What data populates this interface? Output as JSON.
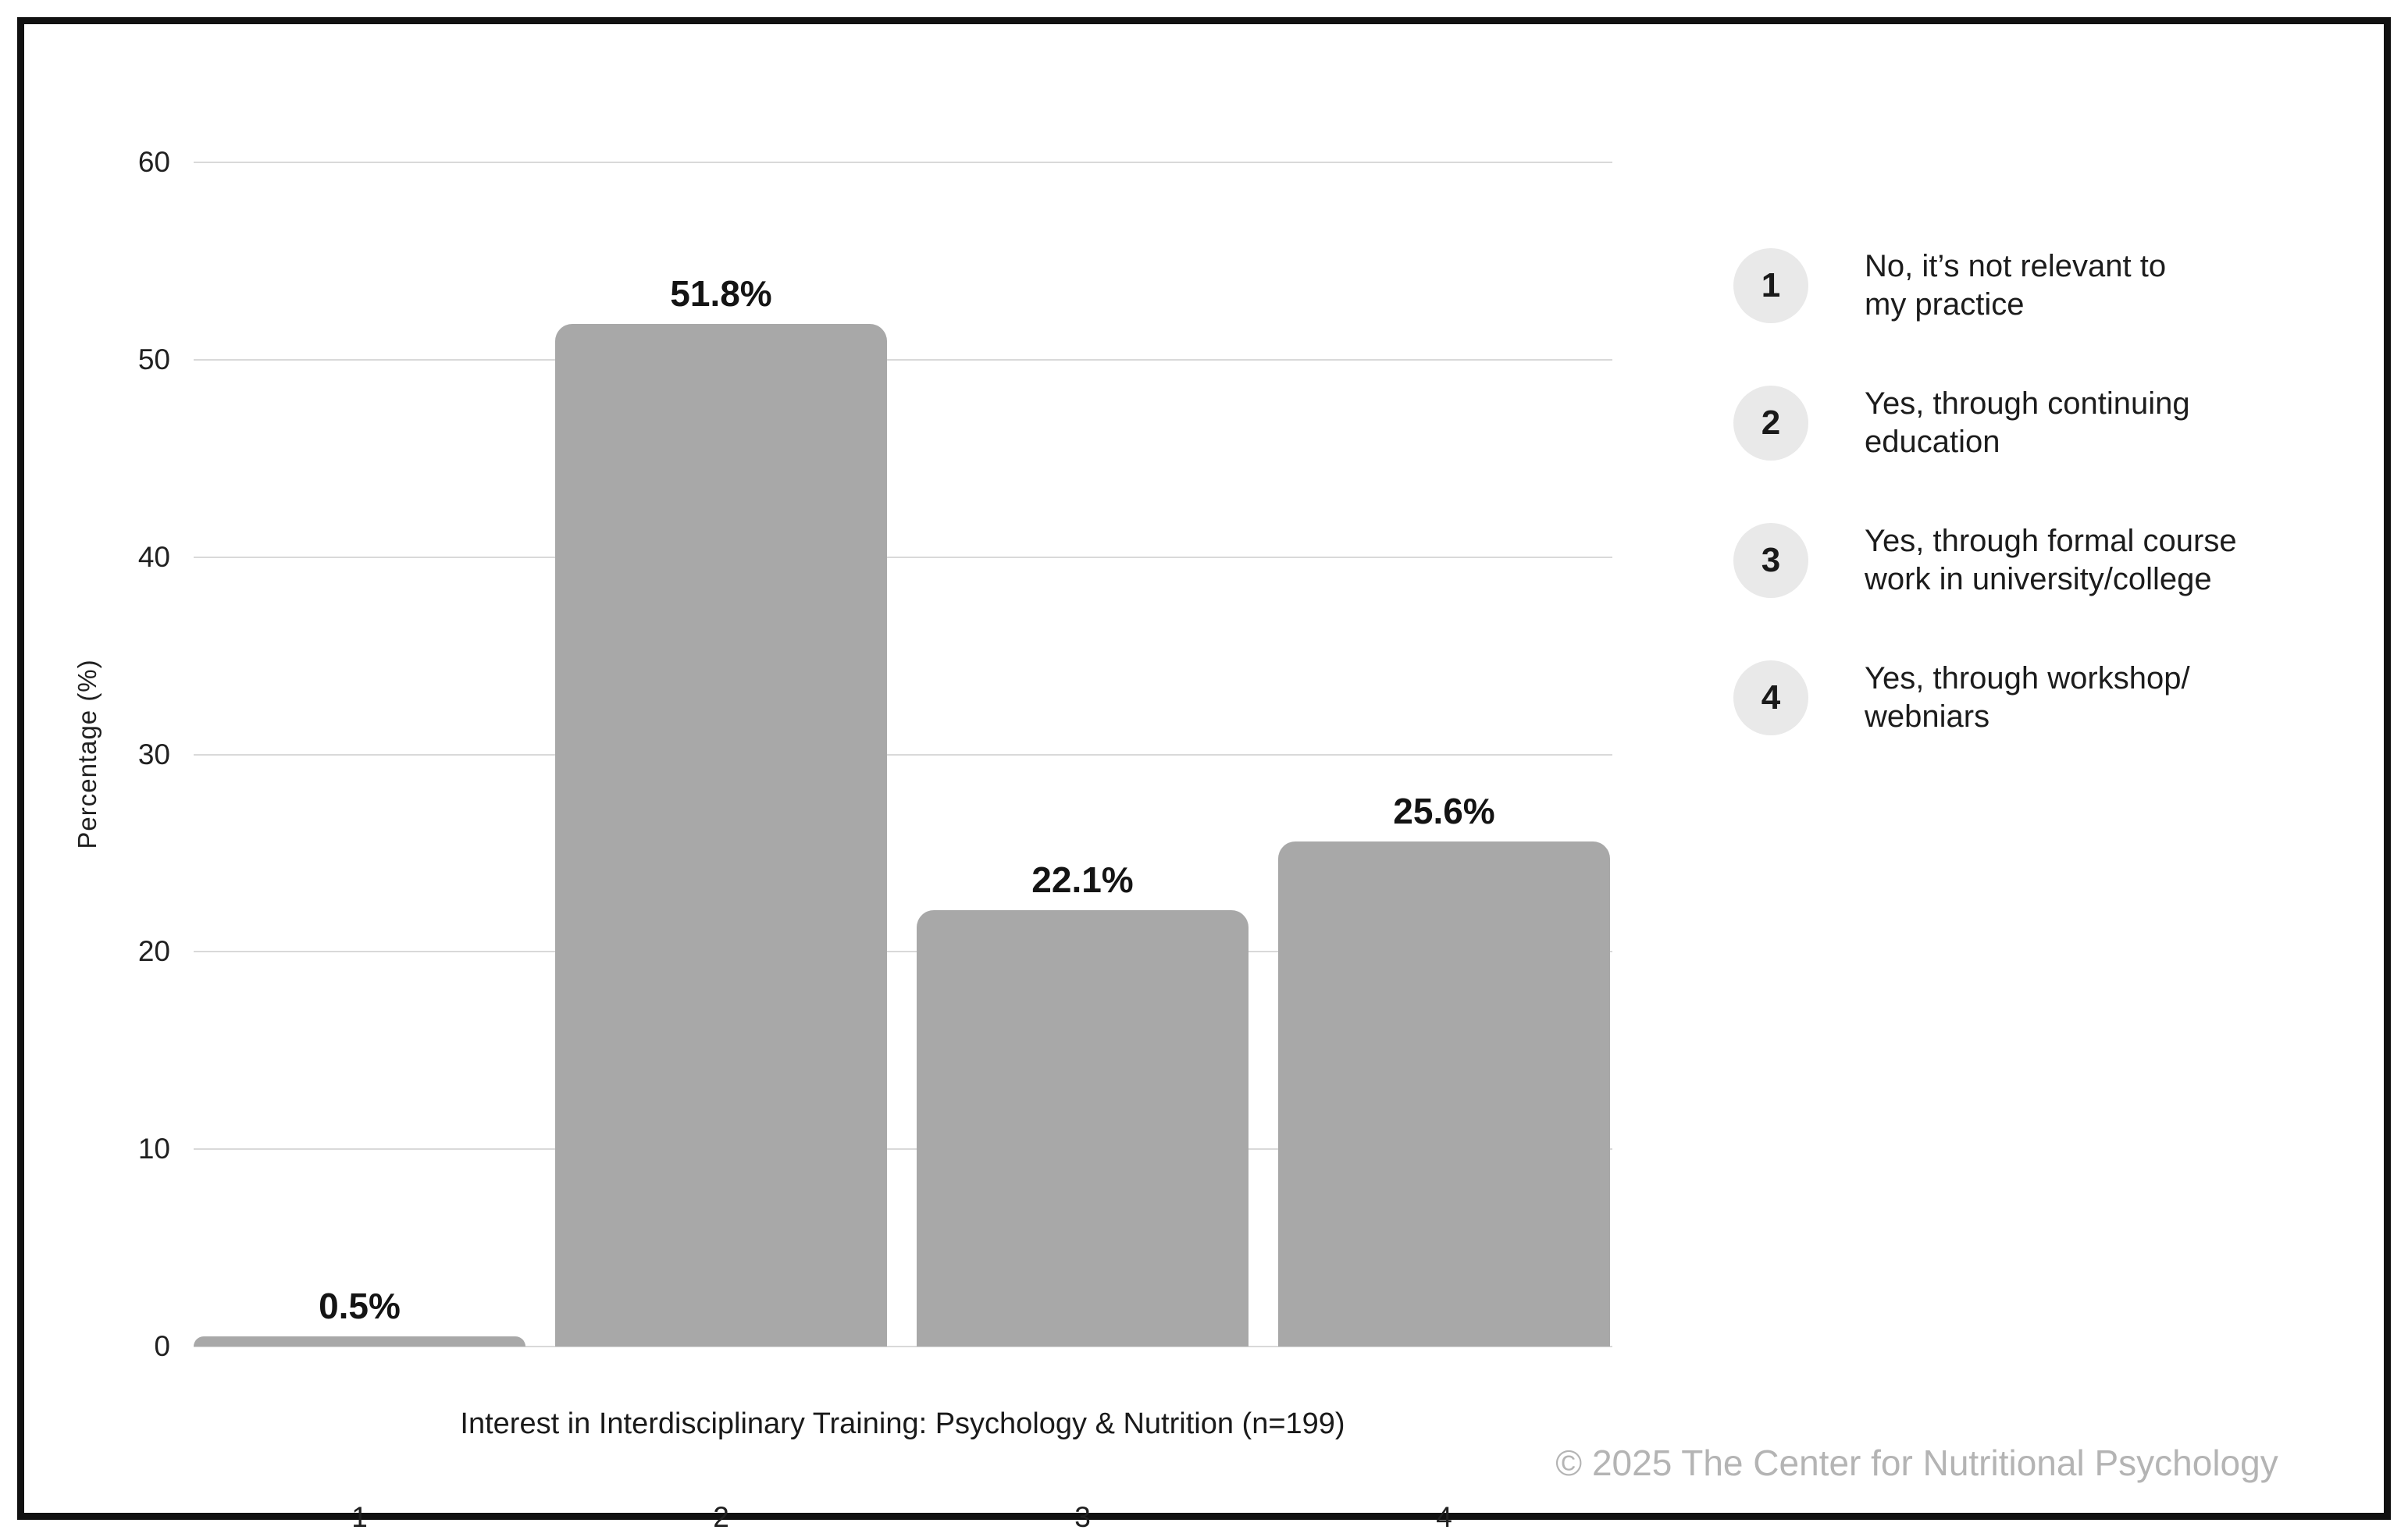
{
  "chart_data": {
    "type": "bar",
    "title": "",
    "categories": [
      "1",
      "2",
      "3",
      "4"
    ],
    "values": [
      0.5,
      51.8,
      22.1,
      25.6
    ],
    "value_labels": [
      "0.5%",
      "51.8%",
      "22.1%",
      "25.6%"
    ],
    "xlabel": "Interest in Interdisciplinary Training: Psychology & Nutrition (n=199)",
    "ylabel": "Percentage (%)",
    "ylim": [
      0,
      60
    ],
    "yticks": [
      0,
      10,
      20,
      30,
      40,
      50,
      60
    ],
    "grid": "horizontal",
    "legend_position": "right",
    "legend": [
      {
        "marker": "1",
        "label": "No, it’s not relevant to\nmy practice"
      },
      {
        "marker": "2",
        "label": "Yes, through continuing\neducation"
      },
      {
        "marker": "3",
        "label": "Yes, through formal course\nwork in university/college"
      },
      {
        "marker": "4",
        "label": "Yes, through workshop/\nwebniars"
      }
    ],
    "colors": {
      "bar": "#a8a8a8",
      "gridline": "#d9d9d9",
      "legend_circle": "#e9e9e9",
      "text": "#1c1c1c",
      "copyright": "#b4b4b4",
      "frame_border": "#111111"
    }
  },
  "footer": {
    "copyright": "© 2025 The Center for Nutritional Psychology"
  }
}
